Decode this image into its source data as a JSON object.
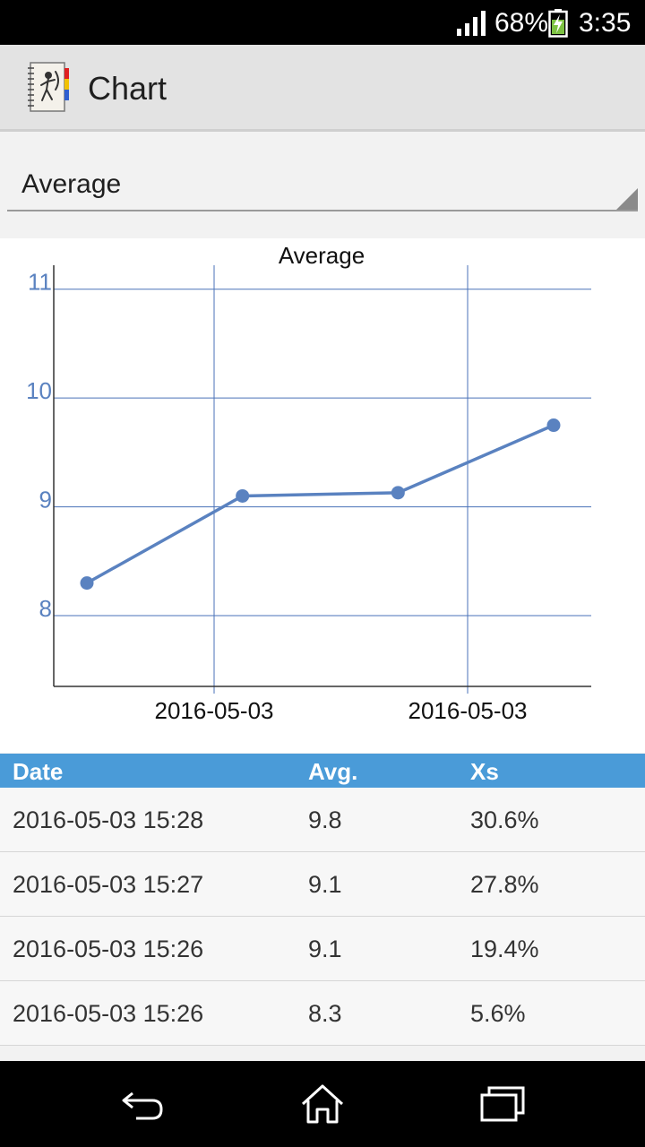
{
  "status_bar": {
    "battery_percent": "68%",
    "time": "3:35",
    "signal_bars": 4
  },
  "action_bar": {
    "title": "Chart"
  },
  "spinner": {
    "selected": "Average"
  },
  "chart_data": {
    "type": "line",
    "title": "Average",
    "x_tick_labels": [
      "2016-05-03",
      "2016-05-03"
    ],
    "y_ticks": [
      8,
      9,
      10,
      11
    ],
    "ylim": [
      7.35,
      11.22
    ],
    "grid": true,
    "series": [
      {
        "values": [
          8.3,
          9.1,
          9.13,
          9.75
        ],
        "color": "#5a82c0"
      }
    ]
  },
  "table": {
    "headers": {
      "date": "Date",
      "avg": "Avg.",
      "xs": "Xs"
    },
    "rows": [
      {
        "date": "2016-05-03  15:28",
        "avg": "9.8",
        "xs": "30.6%"
      },
      {
        "date": "2016-05-03  15:27",
        "avg": "9.1",
        "xs": "27.8%"
      },
      {
        "date": "2016-05-03  15:26",
        "avg": "9.1",
        "xs": "19.4%"
      },
      {
        "date": "2016-05-03  15:26",
        "avg": "8.3",
        "xs": "5.6%"
      }
    ]
  },
  "colors": {
    "accent": "#4a9bd8",
    "axis_label": "#5a82c0",
    "line": "#5a82c0",
    "grid": "#4a72b8"
  }
}
